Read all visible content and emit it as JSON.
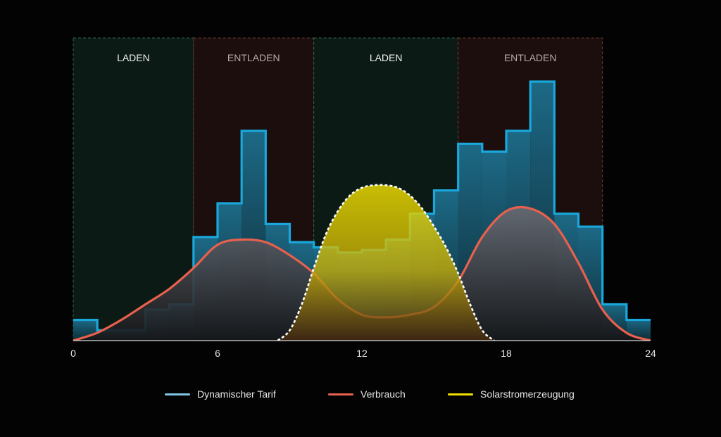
{
  "chart_data": {
    "type": "area",
    "xlim": [
      0,
      24
    ],
    "x_ticks": [
      0,
      6,
      12,
      18,
      24
    ],
    "x_tick_labels": [
      "0",
      "6",
      "12",
      "18",
      "24"
    ],
    "ylim": [
      0,
      100
    ],
    "zones": [
      {
        "label": "LADEN",
        "start": 0,
        "end": 5,
        "kind": "charge"
      },
      {
        "label": "ENTLADEN",
        "start": 5,
        "end": 10,
        "kind": "discharge"
      },
      {
        "label": "LADEN",
        "start": 10,
        "end": 16,
        "kind": "charge"
      },
      {
        "label": "ENTLADEN",
        "start": 16,
        "end": 22,
        "kind": "discharge"
      }
    ],
    "series": [
      {
        "name": "Dynamischer Tarif",
        "kind": "step",
        "color": "#19a7dc",
        "steps": [
          {
            "start": 0,
            "end": 1,
            "value": 8
          },
          {
            "start": 1,
            "end": 3,
            "value": 4
          },
          {
            "start": 3,
            "end": 4,
            "value": 12
          },
          {
            "start": 4,
            "end": 5,
            "value": 14
          },
          {
            "start": 5,
            "end": 6,
            "value": 40
          },
          {
            "start": 6,
            "end": 7,
            "value": 53
          },
          {
            "start": 7,
            "end": 8,
            "value": 81
          },
          {
            "start": 8,
            "end": 9,
            "value": 45
          },
          {
            "start": 9,
            "end": 10,
            "value": 38
          },
          {
            "start": 10,
            "end": 11,
            "value": 36
          },
          {
            "start": 11,
            "end": 12,
            "value": 34
          },
          {
            "start": 12,
            "end": 13,
            "value": 35
          },
          {
            "start": 13,
            "end": 14,
            "value": 39
          },
          {
            "start": 14,
            "end": 15,
            "value": 49
          },
          {
            "start": 15,
            "end": 16,
            "value": 58
          },
          {
            "start": 16,
            "end": 17,
            "value": 76
          },
          {
            "start": 17,
            "end": 18,
            "value": 73
          },
          {
            "start": 18,
            "end": 19,
            "value": 81
          },
          {
            "start": 19,
            "end": 20,
            "value": 100
          },
          {
            "start": 20,
            "end": 21,
            "value": 49
          },
          {
            "start": 21,
            "end": 22,
            "value": 44
          },
          {
            "start": 22,
            "end": 23,
            "value": 14
          },
          {
            "start": 23,
            "end": 24,
            "value": 8
          }
        ]
      },
      {
        "name": "Verbrauch",
        "kind": "smooth",
        "color": "#e8604e",
        "x": [
          0,
          1,
          2,
          3,
          4,
          5,
          6,
          7,
          8,
          9,
          10,
          11,
          12,
          13,
          14,
          15,
          16,
          17,
          18,
          19,
          20,
          21,
          22,
          23,
          24
        ],
        "y": [
          0,
          3,
          8,
          14,
          20,
          28,
          37,
          39,
          38,
          33,
          26,
          16,
          10,
          9,
          10,
          13,
          23,
          40,
          50,
          51,
          45,
          30,
          12,
          3,
          0
        ]
      },
      {
        "name": "Solarstromerzeugung",
        "kind": "smooth",
        "color": "#f0e000",
        "x": [
          8.5,
          9,
          9.5,
          10,
          10.5,
          11,
          11.5,
          12,
          12.5,
          13,
          13.5,
          14,
          14.5,
          15,
          15.5,
          16,
          16.5,
          17,
          17.5
        ],
        "y": [
          0,
          4,
          14,
          28,
          41,
          50,
          56,
          59,
          60,
          60,
          59,
          56,
          51,
          44,
          36,
          26,
          14,
          4,
          0
        ]
      }
    ]
  },
  "legend": [
    {
      "label": "Dynamischer Tarif",
      "color": "#7ec5e2"
    },
    {
      "label": "Verbrauch",
      "color": "#e8604e"
    },
    {
      "label": "Solarstromerzeugung",
      "color": "#f0e000"
    }
  ]
}
